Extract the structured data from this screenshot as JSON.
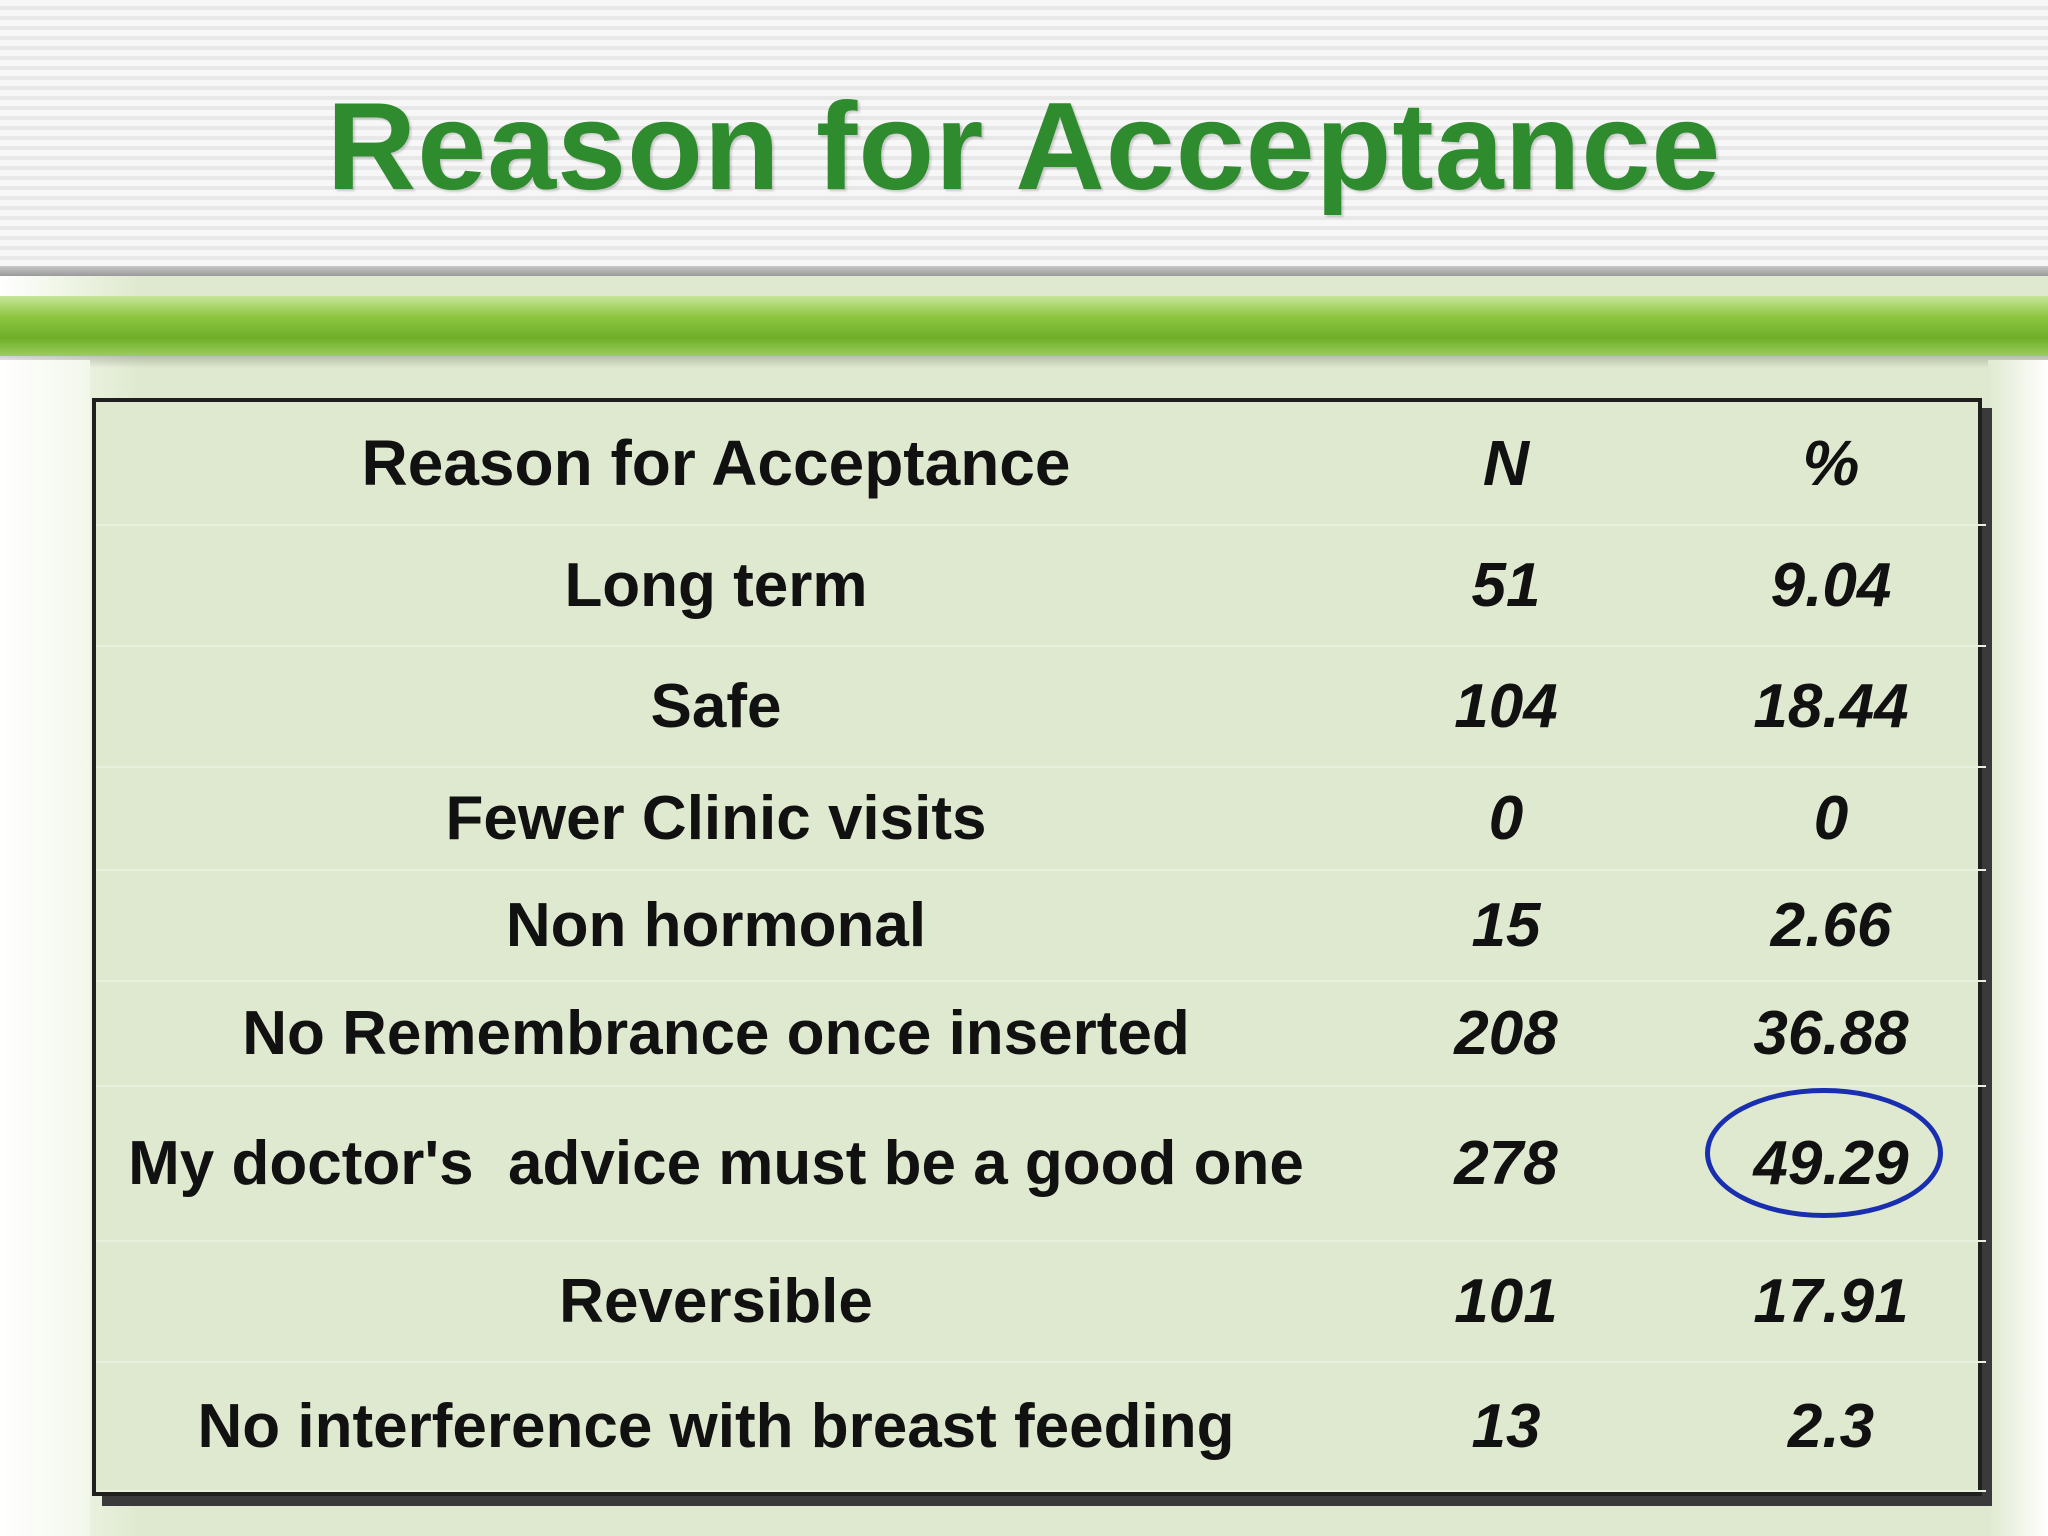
{
  "slide": {
    "title": "Reason for Acceptance"
  },
  "table": {
    "headers": {
      "reason": "Reason for Acceptance",
      "n": "N",
      "pct": "%"
    },
    "rows": [
      {
        "reason": "Long term",
        "n": "51",
        "pct": "9.04"
      },
      {
        "reason": "Safe",
        "n": "104",
        "pct": "18.44"
      },
      {
        "reason": "Fewer Clinic visits",
        "n": "0",
        "pct": "0"
      },
      {
        "reason": "Non hormonal",
        "n": "15",
        "pct": "2.66"
      },
      {
        "reason": "No Remembrance once inserted",
        "n": "208",
        "pct": "36.88"
      },
      {
        "reason": "My doctor's  advice must be a good one",
        "n": "278",
        "pct": "49.29"
      },
      {
        "reason": "Reversible",
        "n": "101",
        "pct": "17.91"
      },
      {
        "reason": "No interference with breast feeding",
        "n": "13",
        "pct": "2.3"
      }
    ]
  },
  "colors": {
    "title": "#2e8b2e",
    "panel": "#dfe9cf",
    "green_bar": "#8cc63f",
    "highlight_circle": "#1a2fb0"
  }
}
